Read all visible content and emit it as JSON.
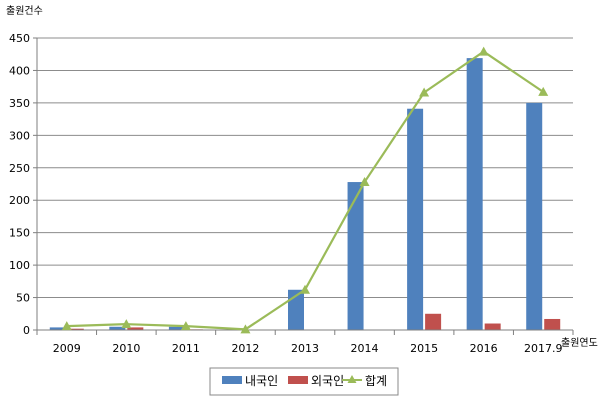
{
  "chart_data": {
    "type": "bar",
    "ylabel": "출원건수",
    "xlabel": "출원연도",
    "ylim": [
      0,
      450
    ],
    "yticks": [
      0,
      50,
      100,
      150,
      200,
      250,
      300,
      350,
      400,
      450
    ],
    "grid": true,
    "legend_position": "bottom",
    "categories": [
      "2009",
      "2010",
      "2011",
      "2012",
      "2013",
      "2014",
      "2015",
      "2016",
      "2017.9"
    ],
    "series": [
      {
        "name": "내국인",
        "kind": "bar",
        "color": "#4F81BD",
        "values": [
          4,
          5,
          5,
          1,
          62,
          228,
          341,
          419,
          350
        ]
      },
      {
        "name": "외국인",
        "kind": "bar",
        "color": "#C0504D",
        "values": [
          2,
          4,
          1,
          0,
          0,
          0,
          25,
          10,
          17
        ]
      },
      {
        "name": "합계",
        "kind": "line",
        "color": "#9BBB59",
        "values": [
          6,
          9,
          6,
          1,
          62,
          228,
          366,
          429,
          367
        ]
      }
    ]
  }
}
